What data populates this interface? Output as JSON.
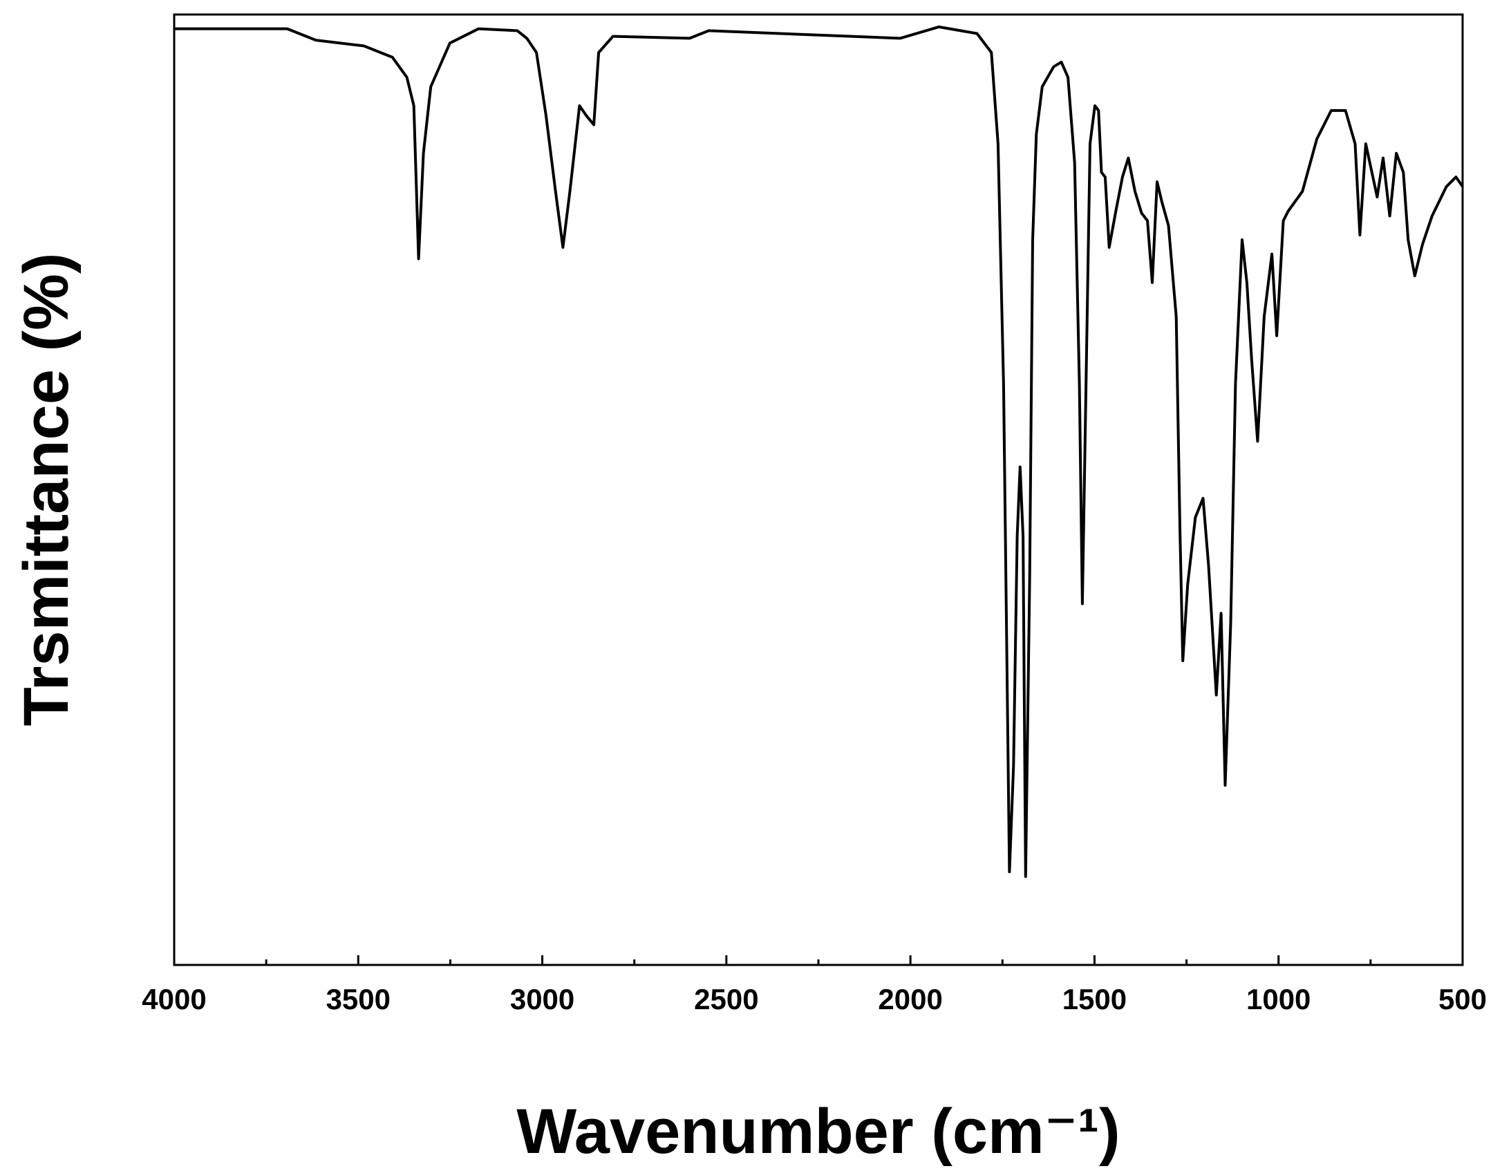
{
  "chart_data": {
    "type": "line",
    "xlabel": "Wavenumber (cm⁻¹)",
    "ylabel": "Trsmittance (%)",
    "xlim": [
      4000,
      500
    ],
    "xticks": [
      4000,
      3500,
      3000,
      2500,
      2000,
      1500,
      1000,
      500
    ],
    "xminorticks": [
      3750,
      3250,
      2750,
      2250,
      1750,
      1250,
      750
    ],
    "ylim": [
      0,
      100
    ],
    "x": [
      4000,
      3693,
      3615,
      3485,
      3407,
      3368,
      3349,
      3336,
      3323,
      3303,
      3251,
      3173,
      3068,
      3042,
      3016,
      2990,
      2964,
      2944,
      2925,
      2899,
      2881,
      2860,
      2847,
      2808,
      2600,
      2548,
      2028,
      1923,
      1819,
      1780,
      1762,
      1747,
      1731,
      1720,
      1710,
      1702,
      1694,
      1687,
      1676,
      1668,
      1658,
      1642,
      1611,
      1590,
      1572,
      1554,
      1541,
      1533,
      1523,
      1512,
      1499,
      1489,
      1481,
      1471,
      1460,
      1442,
      1424,
      1408,
      1390,
      1372,
      1356,
      1343,
      1330,
      1317,
      1299,
      1278,
      1268,
      1260,
      1247,
      1226,
      1205,
      1190,
      1169,
      1156,
      1145,
      1130,
      1117,
      1099,
      1086,
      1073,
      1057,
      1039,
      1018,
      1005,
      987,
      974,
      935,
      896,
      857,
      818,
      792,
      779,
      763,
      732,
      716,
      698,
      680,
      661,
      648,
      630,
      609,
      583,
      544,
      518,
      500
    ],
    "series": [
      {
        "name": "spectrum",
        "color": "#000000",
        "values": [
          98.5,
          98.5,
          97.3,
          96.7,
          95.5,
          93.4,
          90.4,
          74.3,
          85.4,
          92.4,
          97.0,
          98.5,
          98.3,
          97.5,
          96.0,
          89.4,
          81.4,
          75.5,
          81.4,
          90.4,
          89.4,
          88.4,
          96.0,
          97.7,
          97.5,
          98.3,
          97.5,
          98.7,
          98.0,
          96.0,
          86.4,
          61.1,
          9.8,
          20.9,
          45.1,
          52.4,
          45.1,
          9.3,
          41.0,
          76.3,
          87.4,
          92.4,
          94.5,
          95.0,
          93.4,
          84.4,
          61.1,
          38.0,
          61.1,
          86.4,
          90.4,
          89.9,
          83.4,
          82.9,
          75.5,
          79.3,
          82.9,
          84.9,
          81.4,
          79.1,
          78.3,
          71.8,
          82.4,
          80.3,
          77.8,
          68.2,
          46.1,
          32.0,
          40.0,
          47.1,
          49.1,
          42.0,
          28.4,
          37.0,
          18.9,
          36.0,
          61.1,
          76.3,
          71.8,
          63.7,
          55.1,
          68.2,
          74.8,
          66.2,
          78.3,
          79.3,
          81.4,
          86.9,
          89.9,
          89.9,
          86.4,
          76.8,
          86.4,
          80.8,
          84.9,
          78.8,
          85.4,
          83.4,
          76.3,
          72.5,
          75.8,
          78.8,
          81.9,
          82.9,
          81.9
        ]
      }
    ]
  }
}
